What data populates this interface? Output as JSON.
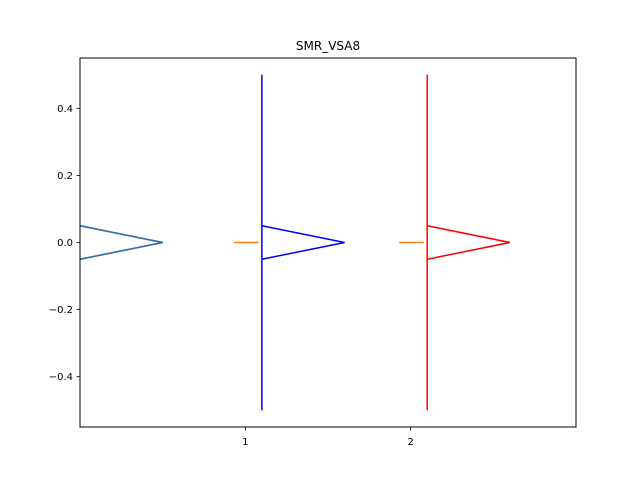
{
  "chart_data": {
    "type": "line",
    "title": "SMR_VSA8",
    "xlabel": "",
    "ylabel": "",
    "xlim": [
      0,
      3
    ],
    "ylim": [
      -0.55,
      0.55
    ],
    "xticks": [
      {
        "value": 1,
        "label": "1"
      },
      {
        "value": 2,
        "label": "2"
      }
    ],
    "yticks": [
      {
        "value": -0.4,
        "label": "−0.4"
      },
      {
        "value": -0.2,
        "label": "−0.2"
      },
      {
        "value": 0.0,
        "label": "0.0"
      },
      {
        "value": 0.2,
        "label": "0.2"
      },
      {
        "value": 0.4,
        "label": "0.4"
      }
    ],
    "grid": false,
    "series": [
      {
        "color": "#0000ff",
        "x": [
          1.1,
          1.1
        ],
        "y": [
          -0.5,
          0.5
        ]
      },
      {
        "color": "#0000ff",
        "x": [
          1.1,
          1.6,
          1.1
        ],
        "y": [
          0.05,
          0.0,
          -0.05
        ]
      },
      {
        "color": "#ff0000",
        "x": [
          2.1,
          2.1
        ],
        "y": [
          -0.5,
          0.5
        ]
      },
      {
        "color": "#ff0000",
        "x": [
          2.1,
          2.6,
          2.1
        ],
        "y": [
          0.05,
          0.0,
          -0.05
        ]
      },
      {
        "color": "#ff0000",
        "x": [
          0.0,
          0.5,
          0.0
        ],
        "y": [
          0.05,
          0.0,
          -0.05
        ]
      },
      {
        "color": "#1f77b4",
        "x": [
          0.0,
          0.5,
          0.0
        ],
        "y": [
          0.05,
          0.0,
          -0.05
        ]
      },
      {
        "color": "#ff7f0e",
        "x": [
          0.93,
          1.08
        ],
        "y": [
          0.0,
          0.0
        ]
      },
      {
        "color": "#ff7f0e",
        "x": [
          1.93,
          2.08
        ],
        "y": [
          0.0,
          0.0
        ]
      }
    ]
  }
}
